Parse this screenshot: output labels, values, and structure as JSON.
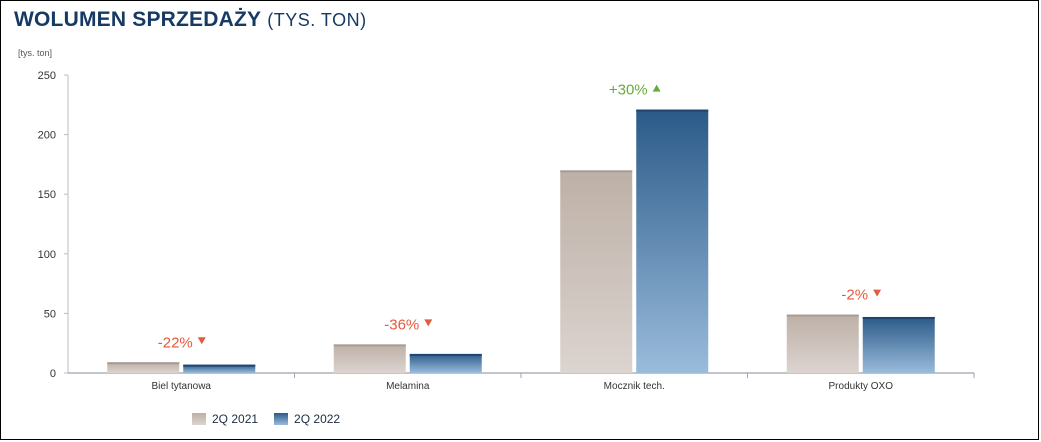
{
  "header": {
    "title_main": "WOLUMEN SPRZEDAŻY",
    "title_sub": "(TYS. TON)"
  },
  "chart_data": {
    "type": "bar",
    "unit_label": "[tys. ton]",
    "categories": [
      "Biel tytanowa",
      "Melamina",
      "Mocznik tech.",
      "Produkty OXO"
    ],
    "series": [
      {
        "name": "2Q 2021",
        "values": [
          9,
          24,
          170,
          49
        ],
        "color": "#c6bab1"
      },
      {
        "name": "2Q 2022",
        "values": [
          7,
          16,
          221,
          47
        ],
        "color": "#3d6b98"
      }
    ],
    "changes": [
      {
        "label": "-22%",
        "direction": "down",
        "color": "#e25b3c"
      },
      {
        "label": "-36%",
        "direction": "down",
        "color": "#e25b3c"
      },
      {
        "label": "+30%",
        "direction": "up",
        "color": "#6aaa3a"
      },
      {
        "label": "-2%",
        "direction": "down",
        "color": "#e25b3c"
      }
    ],
    "ylim": [
      0,
      250
    ],
    "yticks": [
      0,
      50,
      100,
      150,
      200,
      250
    ],
    "grid": false,
    "legend_position": "bottom-left"
  }
}
